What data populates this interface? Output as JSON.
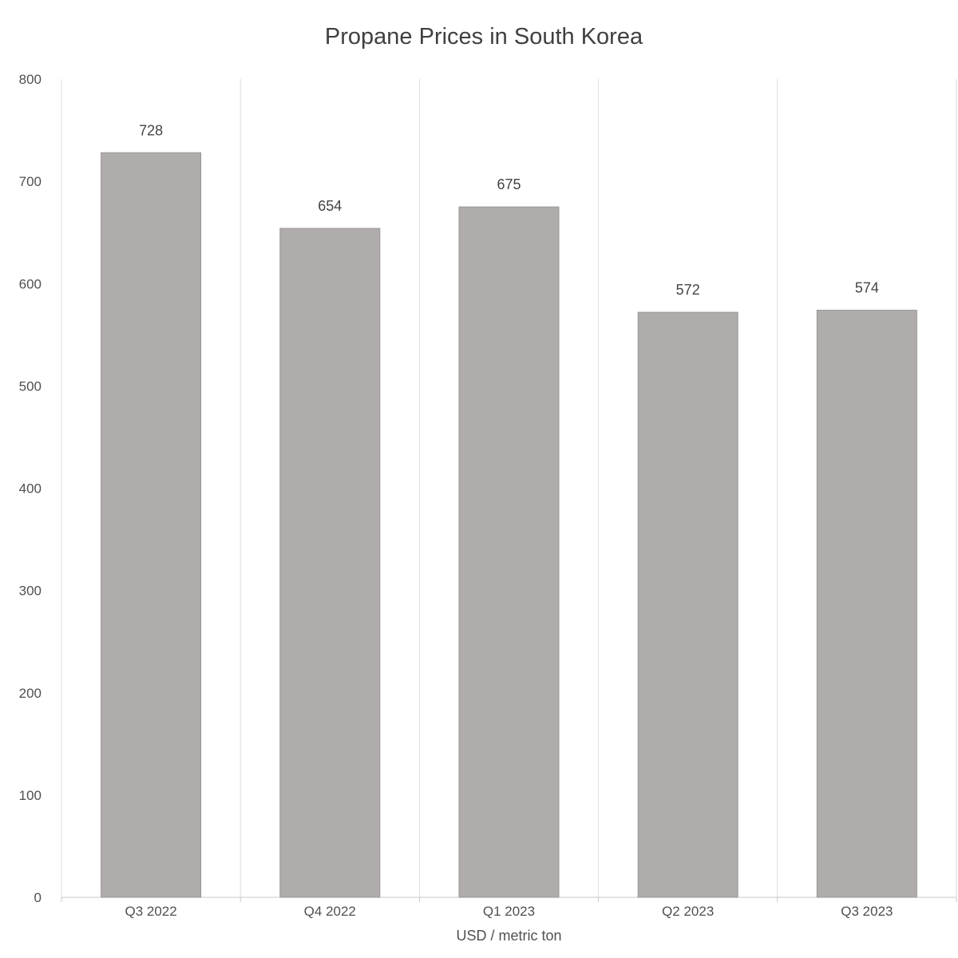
{
  "chart_data": {
    "type": "bar",
    "title": "Propane Prices in South Korea",
    "xlabel": "USD / metric ton",
    "ylabel": "",
    "categories": [
      "Q3 2022",
      "Q4 2022",
      "Q1 2023",
      "Q2 2023",
      "Q3 2023"
    ],
    "values": [
      728,
      654,
      675,
      572,
      574
    ],
    "data_labels": [
      "728",
      "654",
      "675",
      "572",
      "574"
    ],
    "y_ticks": [
      "0",
      "100",
      "200",
      "300",
      "400",
      "500",
      "600",
      "700",
      "800"
    ],
    "ylim": [
      0,
      800
    ],
    "grid": "vertical category separators",
    "legend": "none",
    "colors": {
      "bar": "#afacab",
      "bar_edge": "#9a9796",
      "grid": "#dddddd",
      "axis": "#c8c8c8"
    }
  }
}
